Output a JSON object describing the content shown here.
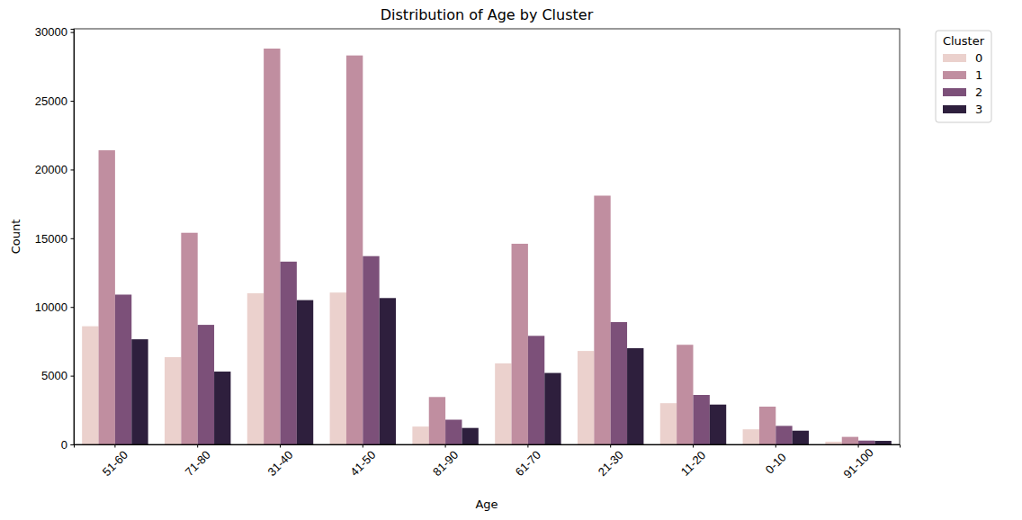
{
  "chart_data": {
    "type": "bar",
    "title": "Distribution of Age by Cluster",
    "x_label": "Age",
    "y_label": "Count",
    "legend_title": "Cluster",
    "categories": [
      "51-60",
      "71-80",
      "31-40",
      "41-50",
      "81-90",
      "61-70",
      "21-30",
      "11-20",
      "0-10",
      "91-100"
    ],
    "series": [
      {
        "name": "0",
        "color": "#ebd1cd",
        "values": [
          8600,
          6350,
          11000,
          11050,
          1300,
          5900,
          6800,
          3000,
          1100,
          200
        ]
      },
      {
        "name": "1",
        "color": "#c08ea0",
        "values": [
          21400,
          15400,
          28800,
          28300,
          3450,
          14600,
          18100,
          7250,
          2750,
          550
        ]
      },
      {
        "name": "2",
        "color": "#7c5079",
        "values": [
          10900,
          8700,
          13300,
          13700,
          1800,
          7900,
          8900,
          3600,
          1350,
          280
        ]
      },
      {
        "name": "3",
        "color": "#2e1f3d",
        "values": [
          7650,
          5300,
          10500,
          10650,
          1200,
          5200,
          7000,
          2900,
          1000,
          260
        ]
      }
    ],
    "ylim": [
      0,
      30240
    ],
    "yticks": [
      0,
      5000,
      10000,
      15000,
      20000,
      25000,
      30000
    ],
    "grid": false,
    "legend": "right"
  }
}
